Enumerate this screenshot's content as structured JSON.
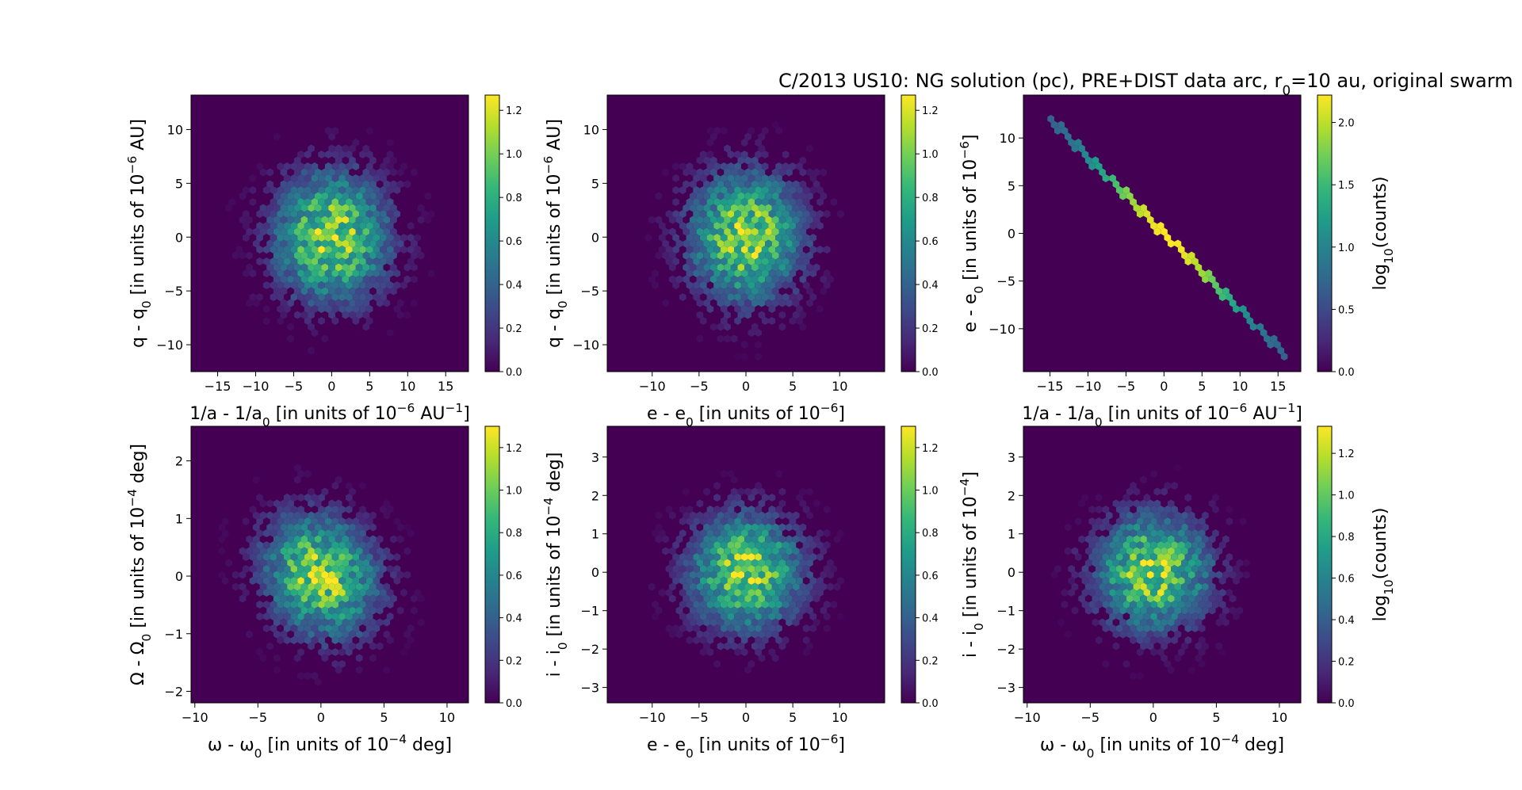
{
  "figure": {
    "title_parts": [
      "C/2013 US10: NG solution (pc), PRE+DIST data arc, r",
      "0",
      "=10 au, original swarm"
    ]
  },
  "colormap": [
    "#440154",
    "#482878",
    "#3e4989",
    "#31688e",
    "#26828e",
    "#1f9e89",
    "#35b779",
    "#6ece58",
    "#b5de2b",
    "#fde725"
  ],
  "chart_data": [
    {
      "type": "heatmap",
      "subtype": "hexbin",
      "xlabel": {
        "parts": [
          "1/a - 1/a",
          "0",
          " [in units of 10",
          "−6",
          " AU",
          "−1",
          "]"
        ]
      },
      "ylabel": {
        "parts": [
          "q - q",
          "0",
          " [in units of 10",
          "−6",
          " AU]"
        ]
      },
      "xlim": [
        -18.5,
        18.0
      ],
      "ylim": [
        -12.5,
        13.2
      ],
      "xticks": [
        -15,
        -10,
        -5,
        0,
        5,
        10,
        15
      ],
      "yticks": [
        -10,
        -5,
        0,
        5,
        10
      ],
      "distribution": {
        "kind": "gaussian",
        "x_sigma": 5.0,
        "y_sigma": 4.0,
        "correlation": 0
      },
      "colorbar": {
        "range": [
          0,
          1.27
        ],
        "ticks": [
          "0.0",
          "0.2",
          "0.4",
          "0.6",
          "0.8",
          "1.0",
          "1.2"
        ],
        "label": ""
      }
    },
    {
      "type": "heatmap",
      "subtype": "hexbin",
      "xlabel": {
        "parts": [
          "e - e",
          "0",
          " [in units of 10",
          "−6",
          "]"
        ]
      },
      "ylabel": {
        "parts": [
          "q - q",
          "0",
          " [in units of 10",
          "−6",
          " AU]"
        ]
      },
      "xlim": [
        -14.8,
        14.8
      ],
      "ylim": [
        -12.5,
        13.2
      ],
      "xticks": [
        -10,
        -5,
        0,
        5,
        10
      ],
      "yticks": [
        -10,
        -5,
        0,
        5,
        10
      ],
      "distribution": {
        "kind": "gaussian",
        "x_sigma": 4.0,
        "y_sigma": 4.0,
        "correlation": 0
      },
      "colorbar": {
        "range": [
          0,
          1.27
        ],
        "ticks": [
          "0.0",
          "0.2",
          "0.4",
          "0.6",
          "0.8",
          "1.0",
          "1.2"
        ],
        "label": ""
      }
    },
    {
      "type": "heatmap",
      "subtype": "hexbin",
      "xlabel": {
        "parts": [
          "1/a - 1/a",
          "0",
          " [in units of 10",
          "−6",
          " AU",
          "−1",
          "]"
        ]
      },
      "ylabel": {
        "parts": [
          "e - e",
          "0",
          " [in units of 10",
          "−6",
          "]"
        ]
      },
      "xlim": [
        -18.5,
        18.0
      ],
      "ylim": [
        -14.5,
        14.5
      ],
      "xticks": [
        -15,
        -10,
        -5,
        0,
        5,
        10,
        15
      ],
      "yticks": [
        -10,
        -5,
        0,
        5,
        10
      ],
      "distribution": {
        "kind": "line",
        "slope": -0.8,
        "from": [
          -15.0,
          12.0
        ],
        "to": [
          16.0,
          -12.8
        ]
      },
      "colorbar": {
        "range": [
          0,
          2.22
        ],
        "ticks": [
          "0.0",
          "0.5",
          "1.0",
          "1.5",
          "2.0"
        ],
        "label": {
          "parts": [
            "log",
            "10",
            "(counts)"
          ]
        }
      }
    },
    {
      "type": "heatmap",
      "subtype": "hexbin",
      "xlabel": {
        "parts": [
          "ω - ω",
          "0",
          " [in units of 10",
          "−4",
          " deg]"
        ]
      },
      "ylabel": {
        "parts": [
          "Ω - Ω",
          "0",
          " [in units of 10",
          "−4",
          " deg]"
        ]
      },
      "xlim": [
        -10.3,
        11.7
      ],
      "ylim": [
        -2.2,
        2.6
      ],
      "xticks": [
        -10,
        -5,
        0,
        5,
        10
      ],
      "yticks": [
        -2,
        -1,
        0,
        1,
        2
      ],
      "distribution": {
        "kind": "gaussian",
        "x_sigma": 3.0,
        "y_sigma": 0.7,
        "correlation": -0.15
      },
      "colorbar": {
        "range": [
          0,
          1.3
        ],
        "ticks": [
          "0.0",
          "0.2",
          "0.4",
          "0.6",
          "0.8",
          "1.0",
          "1.2"
        ],
        "label": ""
      }
    },
    {
      "type": "heatmap",
      "subtype": "hexbin",
      "xlabel": {
        "parts": [
          "e - e",
          "0",
          " [in units of 10",
          "−6",
          "]"
        ]
      },
      "ylabel": {
        "parts": [
          "i - i",
          "0",
          " [in units of 10",
          "−4",
          " deg]"
        ]
      },
      "xlim": [
        -14.8,
        14.8
      ],
      "ylim": [
        -3.4,
        3.8
      ],
      "xticks": [
        -10,
        -5,
        0,
        5,
        10
      ],
      "yticks": [
        -3,
        -2,
        -1,
        0,
        1,
        2,
        3
      ],
      "distribution": {
        "kind": "gaussian",
        "x_sigma": 4.0,
        "y_sigma": 1.0,
        "correlation": 0
      },
      "colorbar": {
        "range": [
          0,
          1.3
        ],
        "ticks": [
          "0.0",
          "0.2",
          "0.4",
          "0.6",
          "0.8",
          "1.0",
          "1.2"
        ],
        "label": ""
      }
    },
    {
      "type": "heatmap",
      "subtype": "hexbin",
      "xlabel": {
        "parts": [
          "ω - ω",
          "0",
          " [in units of 10",
          "−4",
          " deg]"
        ]
      },
      "ylabel": {
        "parts": [
          "i - i",
          "0",
          " [in units of 10",
          "−4",
          "]"
        ]
      },
      "xlim": [
        -10.3,
        11.7
      ],
      "ylim": [
        -3.4,
        3.8
      ],
      "xticks": [
        -10,
        -5,
        0,
        5,
        10
      ],
      "yticks": [
        -3,
        -2,
        -1,
        0,
        1,
        2,
        3
      ],
      "distribution": {
        "kind": "gaussian",
        "x_sigma": 3.0,
        "y_sigma": 1.0,
        "correlation": 0
      },
      "colorbar": {
        "range": [
          0,
          1.33
        ],
        "ticks": [
          "0.0",
          "0.2",
          "0.4",
          "0.6",
          "0.8",
          "1.0",
          "1.2"
        ],
        "label": {
          "parts": [
            "log",
            "10",
            "(counts)"
          ]
        }
      }
    }
  ]
}
